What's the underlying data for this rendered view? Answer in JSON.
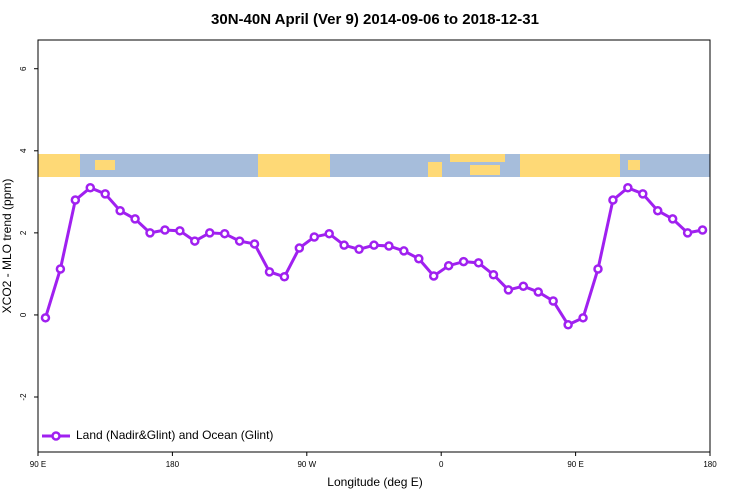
{
  "chart_data": {
    "type": "line",
    "title": "30N-40N April (Ver 9)   2014-09-06 to 2018-12-31",
    "x_label": "Longitude (deg E)",
    "y_label": "XCO2 - MLO trend (ppm)",
    "x": [
      95,
      105,
      115,
      125,
      135,
      145,
      155,
      165,
      175,
      185,
      195,
      205,
      215,
      225,
      235,
      245,
      255,
      265,
      275,
      285,
      295,
      305,
      315,
      325,
      335,
      345,
      355,
      365,
      375,
      385,
      395,
      405,
      415,
      425,
      435,
      445,
      455,
      465,
      475,
      485,
      495,
      505,
      515,
      525,
      535
    ],
    "series": [
      {
        "name": "Land (Nadir&Glint) and Ocean (Glint)",
        "color": "#a020f0",
        "values": [
          -0.07,
          1.12,
          2.8,
          3.1,
          2.95,
          2.54,
          2.34,
          2.0,
          2.07,
          2.05,
          1.8,
          2.0,
          1.98,
          1.8,
          1.73,
          1.05,
          0.93,
          1.63,
          1.9,
          1.98,
          1.7,
          1.6,
          1.7,
          1.68,
          1.56,
          1.37,
          0.95,
          1.2,
          1.3,
          1.27,
          0.98,
          0.61,
          0.7,
          0.56,
          0.34,
          -0.24,
          -0.07,
          1.12,
          2.8,
          3.1,
          2.95,
          2.54,
          2.34,
          2.0,
          2.07
        ]
      }
    ],
    "xlim": [
      90,
      540
    ],
    "xticks": [
      {
        "value": 90,
        "label": "90 E"
      },
      180,
      {
        "value": 270,
        "label": "90 W"
      },
      {
        "value": 360,
        "label": "0"
      },
      {
        "value": 450,
        "label": "90 E"
      },
      {
        "value": 540,
        "label": "180"
      }
    ],
    "ylim": [
      -3.34,
      6.7
    ],
    "yticks": [
      -2,
      0,
      2,
      4,
      6
    ],
    "legend": "bottom-left"
  }
}
